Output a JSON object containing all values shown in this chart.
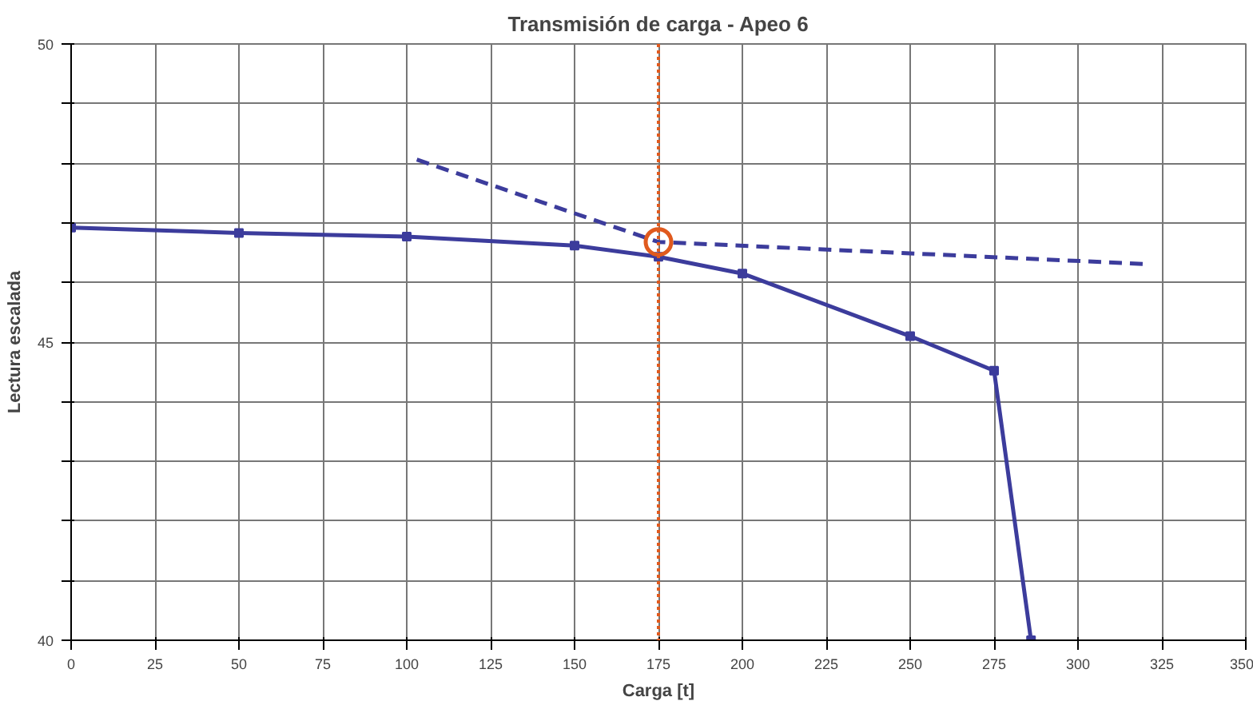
{
  "chart_data": {
    "type": "line",
    "title": "Transmisión de carga - Apeo 6",
    "xlabel": "Carga [t]",
    "ylabel": "Lectura escalada",
    "xlim": [
      0,
      350
    ],
    "xticks": [
      0,
      25,
      50,
      75,
      100,
      125,
      150,
      175,
      200,
      225,
      250,
      275,
      300,
      325,
      350
    ],
    "ylim": [
      40,
      50
    ],
    "yticks": [
      40,
      {
        "value": 41,
        "label": null
      },
      {
        "value": 42,
        "label": null
      },
      {
        "value": 43,
        "label": null
      },
      {
        "value": 44,
        "label": null
      },
      45,
      {
        "value": 46,
        "label": null
      },
      {
        "value": 47,
        "label": null
      },
      {
        "value": 48,
        "label": null
      },
      {
        "value": 49,
        "label": null
      },
      50
    ],
    "grid": true,
    "series": [
      {
        "color": "#3c3c9c",
        "x": [
          0,
          50,
          100,
          150,
          175,
          200,
          250,
          275,
          286
        ],
        "values": [
          46.92,
          46.83,
          46.77,
          46.62,
          46.43,
          46.15,
          45.1,
          44.52,
          40
        ],
        "marker": "square",
        "line_style": "solid"
      },
      {
        "color": "#3c3c9c",
        "x": [
          103,
          175,
          320
        ],
        "values": [
          48.06,
          46.68,
          46.31
        ],
        "marker": "none",
        "line_style": "dashed"
      },
      {
        "type": "scatter",
        "color": "#e05a1e",
        "x": [
          175
        ],
        "values": [
          46.68
        ],
        "marker": "circle"
      }
    ],
    "ref_lines": [
      {
        "axis": "x",
        "value": 175,
        "color": "#e05a1e",
        "line_style": "dotted"
      }
    ]
  }
}
